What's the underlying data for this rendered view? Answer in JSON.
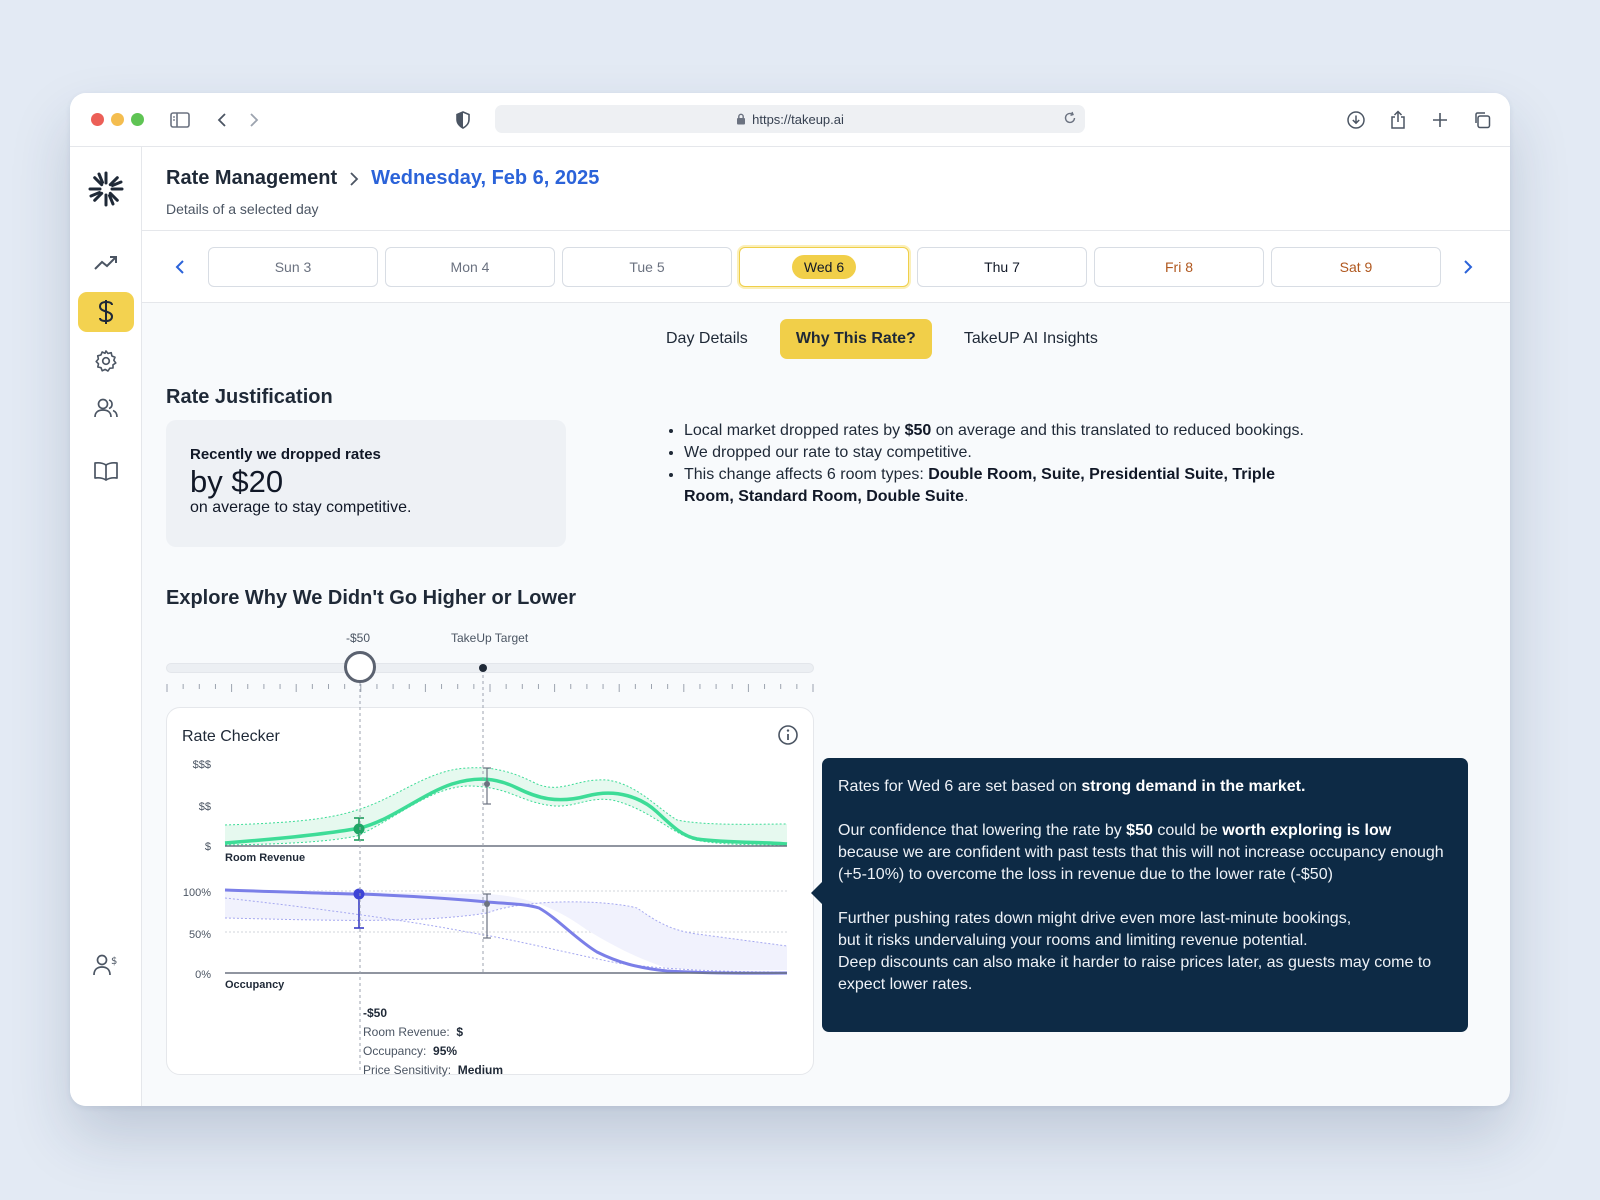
{
  "browser": {
    "url": "https://takeup.ai"
  },
  "header": {
    "breadcrumb_root": "Rate Management",
    "breadcrumb_current": "Wednesday, Feb 6, 2025",
    "subtitle": "Details of a selected day"
  },
  "days": [
    {
      "label": "Sun 3",
      "state": "past"
    },
    {
      "label": "Mon 4",
      "state": "past"
    },
    {
      "label": "Tue 5",
      "state": "past"
    },
    {
      "label": "Wed 6",
      "state": "selected"
    },
    {
      "label": "Thu 7",
      "state": "future"
    },
    {
      "label": "Fri 8",
      "state": "weekend"
    },
    {
      "label": "Sat 9",
      "state": "weekend"
    }
  ],
  "tabs": [
    {
      "label": "Day Details",
      "active": false
    },
    {
      "label": "Why This Rate?",
      "active": true
    },
    {
      "label": "TakeUP AI Insights",
      "active": false
    }
  ],
  "justification": {
    "heading": "Rate Justification",
    "card_lead": "Recently we dropped rates",
    "card_big": "by $20",
    "card_tail": "on average to stay competitive.",
    "bullets": [
      {
        "before": "Local market dropped rates by ",
        "bold": "$50",
        "after": " on average and this translated to reduced bookings."
      },
      {
        "before": "We dropped our rate to stay competitive.",
        "bold": "",
        "after": ""
      },
      {
        "before": "This change affects 6 room types: ",
        "bold": "Double Room, Suite, Presidential Suite, Triple Room, Standard Room, Double Suite",
        "after": "."
      }
    ]
  },
  "explore": {
    "heading": "Explore Why We Didn't Go Higher or Lower",
    "slider_value_label": "-$50",
    "slider_target_label": "TakeUp Target"
  },
  "rate_checker": {
    "title": "Rate Checker",
    "revenue_label": "Room Revenue",
    "occupancy_label": "Occupancy",
    "revenue_ticks": [
      "$$$",
      "$$",
      "$"
    ],
    "occupancy_ticks": [
      "100%",
      "50%",
      "0%"
    ],
    "tooltip": {
      "header": "-$50",
      "revenue_key": "Room Revenue:",
      "revenue_value": "$",
      "occupancy_key": "Occupancy:",
      "occupancy_value": "95%",
      "sensitivity_key": "Price Sensitivity:",
      "sensitivity_value": "Medium"
    }
  },
  "chart_data": [
    {
      "type": "area",
      "title": "",
      "series": [
        {
          "name": "Room Revenue",
          "color": "#3ddc97"
        }
      ],
      "yticks": [
        "$",
        "$$",
        "$$$"
      ],
      "grid": false,
      "legend": "none"
    },
    {
      "type": "area",
      "title": "",
      "series": [
        {
          "name": "Occupancy",
          "color": "#7b7fe8"
        }
      ],
      "yticks": [
        "0%",
        "50%",
        "100%"
      ],
      "grid": true,
      "legend": "none"
    }
  ],
  "explanation": {
    "p1_before": "Rates for Wed 6 are set based on ",
    "p1_bold": "strong demand in the market.",
    "p2_a": "Our confidence that lowering the rate by ",
    "p2_b": "$50",
    "p2_c": " could be ",
    "p2_d": "worth exploring is low",
    "p2_e": " because we are confident with past tests that this will not increase occupancy enough (+5-10%) to overcome the loss in revenue due to the lower rate (-$50)",
    "p3_line1": "Further pushing rates down might drive even more last-minute bookings,",
    "p3_line2": "but it risks undervaluing your rooms and limiting revenue potential.",
    "p3_line3": "Deep discounts can also make it harder to raise prices later, as guests may come to expect lower rates."
  },
  "colors": {
    "accent_yellow": "#f1cf49",
    "link_blue": "#2b63d9",
    "weekend_orange": "#b0581f",
    "revenue_green": "#3ddc97",
    "occupancy_purple": "#7b7fe8",
    "dark_panel": "#0d2a45"
  }
}
